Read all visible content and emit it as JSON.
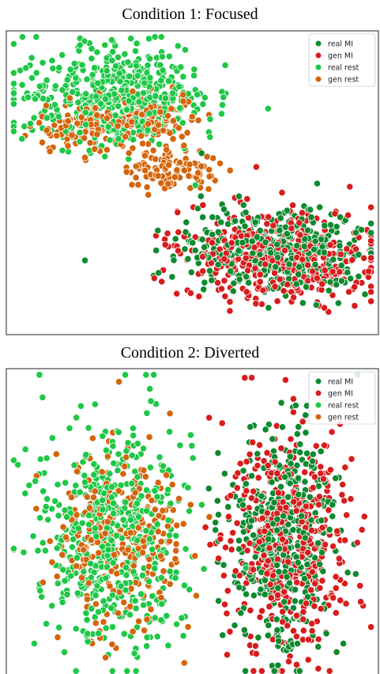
{
  "chart_data": [
    {
      "type": "scatter",
      "title": "Condition 1: Focused",
      "xlabel": "",
      "ylabel": "",
      "axes_visible": false,
      "grid": false,
      "legend_position": "top-right",
      "series": [
        {
          "name": "real MI",
          "color": "#0d8a2f",
          "clusters": [
            {
              "cx": 0.72,
              "cy": 0.72,
              "rx": 0.3,
              "ry": 0.18,
              "n": 420
            }
          ]
        },
        {
          "name": "gen MI",
          "color": "#d81d1d",
          "clusters": [
            {
              "cx": 0.74,
              "cy": 0.74,
              "rx": 0.32,
              "ry": 0.18,
              "n": 420
            }
          ]
        },
        {
          "name": "real rest",
          "color": "#1ec846",
          "clusters": [
            {
              "cx": 0.3,
              "cy": 0.22,
              "rx": 0.3,
              "ry": 0.2,
              "n": 520
            }
          ]
        },
        {
          "name": "gen rest",
          "color": "#d4650c",
          "clusters": [
            {
              "cx": 0.2,
              "cy": 0.32,
              "rx": 0.16,
              "ry": 0.1,
              "n": 110
            },
            {
              "cx": 0.4,
              "cy": 0.28,
              "rx": 0.12,
              "ry": 0.1,
              "n": 120
            },
            {
              "cx": 0.44,
              "cy": 0.46,
              "rx": 0.15,
              "ry": 0.08,
              "n": 110
            }
          ]
        }
      ]
    },
    {
      "type": "scatter",
      "title": "Condition 2: Diverted",
      "xlabel": "",
      "ylabel": "",
      "axes_visible": false,
      "grid": false,
      "legend_position": "top-right",
      "series": [
        {
          "name": "real MI",
          "color": "#0d8a2f",
          "clusters": [
            {
              "cx": 0.74,
              "cy": 0.55,
              "rx": 0.18,
              "ry": 0.42,
              "n": 430
            }
          ]
        },
        {
          "name": "gen MI",
          "color": "#d81d1d",
          "clusters": [
            {
              "cx": 0.76,
              "cy": 0.56,
              "rx": 0.2,
              "ry": 0.44,
              "n": 430
            }
          ]
        },
        {
          "name": "real rest",
          "color": "#1ec846",
          "clusters": [
            {
              "cx": 0.28,
              "cy": 0.56,
              "rx": 0.23,
              "ry": 0.44,
              "n": 520
            }
          ]
        },
        {
          "name": "gen rest",
          "color": "#d4650c",
          "clusters": [
            {
              "cx": 0.3,
              "cy": 0.56,
              "rx": 0.2,
              "ry": 0.36,
              "n": 300
            }
          ]
        }
      ]
    }
  ]
}
